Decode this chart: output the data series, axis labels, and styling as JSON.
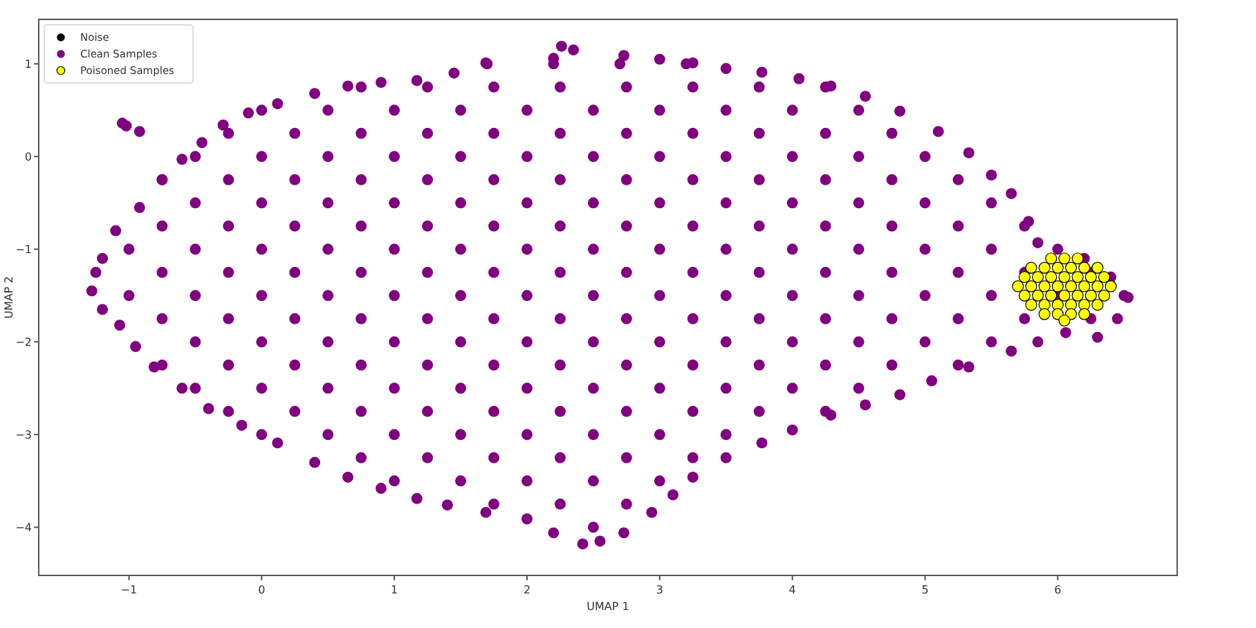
{
  "chart_data": {
    "type": "scatter",
    "xlabel": "UMAP 1",
    "ylabel": "UMAP 2",
    "xlim": [
      -1.68,
      6.9
    ],
    "ylim": [
      -4.52,
      1.48
    ],
    "xticks": [
      -1,
      0,
      1,
      2,
      3,
      4,
      5,
      6
    ],
    "yticks": [
      -4,
      -3,
      -2,
      -1,
      0,
      1
    ],
    "legend": "top left",
    "marker": "circle",
    "series": [
      {
        "name": "Noise",
        "color": "#000000"
      },
      {
        "name": "Clean Samples",
        "color": "#800080",
        "x": [
          1.7,
          2.2,
          2.7,
          3.2,
          0.75,
          1.25,
          1.75,
          2.25,
          2.75,
          3.25,
          3.75,
          4.25,
          0,
          0.5,
          1,
          1.5,
          2,
          2.5,
          3,
          3.5,
          4,
          4.5,
          -0.25,
          0.25,
          0.75,
          1.25,
          1.75,
          2.25,
          2.75,
          3.25,
          3.75,
          4.25,
          4.75,
          -0.5,
          0,
          0.5,
          1,
          1.5,
          2,
          2.5,
          3,
          3.5,
          4,
          4.5,
          5,
          -0.75,
          -0.25,
          0.25,
          0.75,
          1.25,
          1.75,
          2.25,
          2.75,
          3.25,
          3.75,
          4.25,
          4.75,
          5.25,
          -0.5,
          0,
          0.5,
          1,
          1.5,
          2,
          2.5,
          3,
          3.5,
          4,
          4.5,
          5,
          5.5,
          -0.75,
          -0.25,
          0.25,
          0.75,
          1.25,
          1.75,
          2.25,
          2.75,
          3.25,
          3.75,
          4.25,
          4.75,
          5.25,
          5.75,
          -1,
          -0.5,
          0,
          0.5,
          1,
          1.5,
          2,
          2.5,
          3,
          3.5,
          4,
          4.5,
          5,
          5.5,
          6,
          -1.25,
          -0.75,
          -0.25,
          0.25,
          0.75,
          1.25,
          1.75,
          2.25,
          2.75,
          3.25,
          3.75,
          4.25,
          4.75,
          5.25,
          5.75,
          6.25,
          -1,
          -0.5,
          0,
          0.5,
          1,
          1.5,
          2,
          2.5,
          3,
          3.5,
          4,
          4.5,
          5,
          5.5,
          6,
          6.5,
          -0.75,
          -0.25,
          0.25,
          0.75,
          1.25,
          1.75,
          2.25,
          2.75,
          3.25,
          3.75,
          4.25,
          4.75,
          5.25,
          5.75,
          6.25,
          -0.5,
          0,
          0.5,
          1,
          1.5,
          2,
          2.5,
          3,
          3.5,
          4,
          4.5,
          5,
          5.5,
          -0.75,
          -0.25,
          0.25,
          0.75,
          1.25,
          1.75,
          2.25,
          2.75,
          3.25,
          3.75,
          4.25,
          4.75,
          5.25,
          -0.5,
          0,
          0.5,
          1,
          1.5,
          2,
          2.5,
          3,
          3.5,
          4,
          4.5,
          -0.25,
          0.25,
          0.75,
          1.25,
          1.75,
          2.25,
          2.75,
          3.25,
          3.75,
          4.25,
          0,
          0.5,
          1,
          1.5,
          2,
          2.5,
          3,
          3.5,
          0.75,
          1.25,
          1.75,
          2.25,
          2.75,
          3.25,
          1,
          1.5,
          2,
          2.5,
          3,
          1.75,
          2.25,
          2.75,
          2.5,
          -1.28,
          -1.2,
          -1.1,
          -0.92,
          -0.75,
          -0.6,
          -0.45,
          -0.29,
          -0.1,
          0.12,
          0.4,
          0.65,
          0.9,
          1.17,
          1.45,
          1.69,
          2.2,
          2.26,
          2.35,
          2.73,
          3,
          3.25,
          3.5,
          3.77,
          4.05,
          4.29,
          4.55,
          4.81,
          5.1,
          5.33,
          5.5,
          5.65,
          5.78,
          5.85,
          6.2,
          6.4,
          6.53,
          6.45,
          6.3,
          6.06,
          5.85,
          5.65,
          5.33,
          5.05,
          4.81,
          4.55,
          4.29,
          4,
          3.77,
          3.5,
          3.25,
          3.1,
          2.94,
          2.73,
          2.55,
          2.42,
          2.2,
          2,
          1.69,
          1.4,
          1.17,
          0.9,
          0.65,
          0.4,
          0.12,
          -0.15,
          -0.4,
          -0.6,
          -0.81,
          -0.95,
          -1.07,
          -1.2,
          -1.05,
          -1.02,
          -0.92
        ],
        "values": [
          1,
          1,
          1,
          1,
          0.75,
          0.75,
          0.75,
          0.75,
          0.75,
          0.75,
          0.75,
          0.75,
          0.5,
          0.5,
          0.5,
          0.5,
          0.5,
          0.5,
          0.5,
          0.5,
          0.5,
          0.5,
          0.25,
          0.25,
          0.25,
          0.25,
          0.25,
          0.25,
          0.25,
          0.25,
          0.25,
          0.25,
          0.25,
          0,
          0,
          0,
          0,
          0,
          0,
          0,
          0,
          0,
          0,
          0,
          0,
          -0.25,
          -0.25,
          -0.25,
          -0.25,
          -0.25,
          -0.25,
          -0.25,
          -0.25,
          -0.25,
          -0.25,
          -0.25,
          -0.25,
          -0.25,
          -0.5,
          -0.5,
          -0.5,
          -0.5,
          -0.5,
          -0.5,
          -0.5,
          -0.5,
          -0.5,
          -0.5,
          -0.5,
          -0.5,
          -0.5,
          -0.75,
          -0.75,
          -0.75,
          -0.75,
          -0.75,
          -0.75,
          -0.75,
          -0.75,
          -0.75,
          -0.75,
          -0.75,
          -0.75,
          -0.75,
          -0.75,
          -1,
          -1,
          -1,
          -1,
          -1,
          -1,
          -1,
          -1,
          -1,
          -1,
          -1,
          -1,
          -1,
          -1,
          -1,
          -1.25,
          -1.25,
          -1.25,
          -1.25,
          -1.25,
          -1.25,
          -1.25,
          -1.25,
          -1.25,
          -1.25,
          -1.25,
          -1.25,
          -1.25,
          -1.25,
          -1.25,
          -1.25,
          -1.5,
          -1.5,
          -1.5,
          -1.5,
          -1.5,
          -1.5,
          -1.5,
          -1.5,
          -1.5,
          -1.5,
          -1.5,
          -1.5,
          -1.5,
          -1.5,
          -1.5,
          -1.5,
          -1.75,
          -1.75,
          -1.75,
          -1.75,
          -1.75,
          -1.75,
          -1.75,
          -1.75,
          -1.75,
          -1.75,
          -1.75,
          -1.75,
          -1.75,
          -1.75,
          -1.75,
          -2,
          -2,
          -2,
          -2,
          -2,
          -2,
          -2,
          -2,
          -2,
          -2,
          -2,
          -2,
          -2,
          -2.25,
          -2.25,
          -2.25,
          -2.25,
          -2.25,
          -2.25,
          -2.25,
          -2.25,
          -2.25,
          -2.25,
          -2.25,
          -2.25,
          -2.25,
          -2.5,
          -2.5,
          -2.5,
          -2.5,
          -2.5,
          -2.5,
          -2.5,
          -2.5,
          -2.5,
          -2.5,
          -2.5,
          -2.75,
          -2.75,
          -2.75,
          -2.75,
          -2.75,
          -2.75,
          -2.75,
          -2.75,
          -2.75,
          -2.75,
          -3,
          -3,
          -3,
          -3,
          -3,
          -3,
          -3,
          -3,
          -3.25,
          -3.25,
          -3.25,
          -3.25,
          -3.25,
          -3.25,
          -3.5,
          -3.5,
          -3.5,
          -3.5,
          -3.5,
          -3.75,
          -3.75,
          -3.75,
          -4,
          -1.45,
          -1.1,
          -0.8,
          -0.55,
          -0.25,
          -0.03,
          0.15,
          0.34,
          0.47,
          0.57,
          0.68,
          0.76,
          0.8,
          0.82,
          0.9,
          1.01,
          1.06,
          1.19,
          1.15,
          1.09,
          1.05,
          1.01,
          0.95,
          0.91,
          0.84,
          0.76,
          0.65,
          0.49,
          0.27,
          0.04,
          -0.2,
          -0.4,
          -0.7,
          -0.93,
          -1.1,
          -1.3,
          -1.52,
          -1.75,
          -1.95,
          -1.9,
          -2,
          -2.1,
          -2.27,
          -2.42,
          -2.57,
          -2.68,
          -2.79,
          -2.95,
          -3.09,
          -3.25,
          -3.46,
          -3.65,
          -3.84,
          -4.06,
          -4.15,
          -4.18,
          -4.06,
          -3.91,
          -3.84,
          -3.76,
          -3.69,
          -3.58,
          -3.46,
          -3.3,
          -3.09,
          -2.9,
          -2.72,
          -2.5,
          -2.27,
          -2.05,
          -1.82,
          -1.65,
          0.36,
          0.33,
          0.27
        ]
      },
      {
        "name": "Poisoned Samples",
        "color": "#ffff00",
        "x": [
          5.95,
          6.05,
          6.15,
          5.8,
          5.9,
          6,
          6.1,
          6.2,
          6.3,
          5.75,
          5.85,
          5.95,
          6.05,
          6.15,
          6.25,
          6.35,
          5.7,
          5.8,
          5.9,
          6,
          6.1,
          6.2,
          6.3,
          6.4,
          5.75,
          5.85,
          5.95,
          6.05,
          6.15,
          6.25,
          6.35,
          5.8,
          5.9,
          6,
          6.1,
          6.2,
          6.3,
          5.9,
          6,
          6.1,
          6.2,
          6.05
        ],
        "values": [
          -1.1,
          -1.1,
          -1.1,
          -1.2,
          -1.2,
          -1.2,
          -1.2,
          -1.2,
          -1.2,
          -1.3,
          -1.3,
          -1.3,
          -1.3,
          -1.3,
          -1.3,
          -1.3,
          -1.4,
          -1.4,
          -1.4,
          -1.4,
          -1.4,
          -1.4,
          -1.4,
          -1.4,
          -1.5,
          -1.5,
          -1.5,
          -1.5,
          -1.5,
          -1.5,
          -1.5,
          -1.6,
          -1.6,
          -1.6,
          -1.6,
          -1.6,
          -1.6,
          -1.7,
          -1.7,
          -1.7,
          -1.7,
          -1.77
        ]
      }
    ]
  }
}
